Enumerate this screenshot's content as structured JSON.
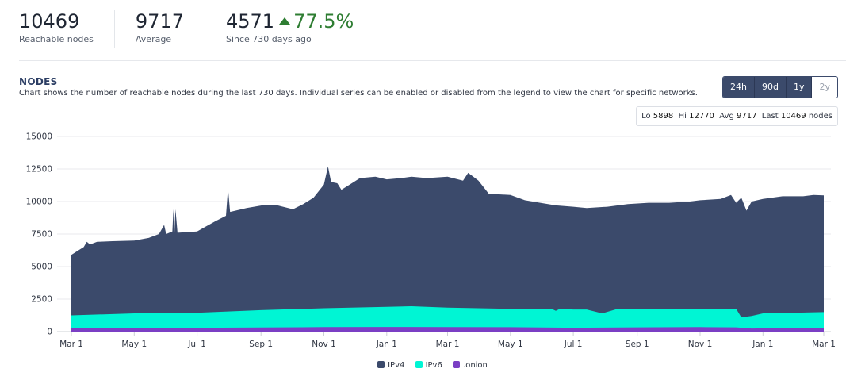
{
  "stats": [
    {
      "value": "10469",
      "label": "Reachable nodes"
    },
    {
      "value": "9717",
      "label": "Average"
    },
    {
      "value": "4571",
      "delta": "77.5%",
      "label": "Since 730 days ago"
    }
  ],
  "section": {
    "title": "NODES",
    "description": "Chart shows the number of reachable nodes during the last 730 days. Individual series can be enabled or disabled from the legend to view the chart for specific networks."
  },
  "range_buttons": [
    {
      "label": "24h",
      "active": false
    },
    {
      "label": "90d",
      "active": false
    },
    {
      "label": "1y",
      "active": false
    },
    {
      "label": "2y",
      "active": true
    }
  ],
  "summary": {
    "lo_label": "Lo",
    "lo": "5898",
    "hi_label": "Hi",
    "hi": "12770",
    "avg_label": "Avg",
    "avg": "9717",
    "last_label": "Last",
    "last": "10469",
    "last_unit": "nodes"
  },
  "colors": {
    "ipv4": "#3b4a6b",
    "ipv6": "#00f5d4",
    "onion": "#7b3fc4"
  },
  "chart_data": {
    "type": "area",
    "stacked": true,
    "ylim": [
      0,
      15000
    ],
    "yticks": [
      0,
      2500,
      5000,
      7500,
      10000,
      12500,
      15000
    ],
    "ytick_labels": [
      "0",
      "2500",
      "5000",
      "7500",
      "10000",
      "12500",
      "15000"
    ],
    "x_tick_labels": [
      "Mar 1",
      "May 1",
      "Jul 1",
      "Sep 1",
      "Nov 1",
      "Jan 1",
      "Mar 1",
      "May 1",
      "Jul 1",
      "Sep 1",
      "Nov 1",
      "Jan 1",
      "Mar 1"
    ],
    "x_tick_day": [
      0,
      61,
      122,
      184,
      245,
      306,
      365,
      426,
      487,
      549,
      610,
      671,
      730
    ],
    "grid": true,
    "legend_position": "bottom-center",
    "series": [
      {
        "name": "IPv4",
        "color": "#3b4a6b",
        "points": [
          [
            0,
            5900
          ],
          [
            6,
            6200
          ],
          [
            12,
            6500
          ],
          [
            15,
            6900
          ],
          [
            18,
            6700
          ],
          [
            25,
            6900
          ],
          [
            40,
            6950
          ],
          [
            61,
            7000
          ],
          [
            75,
            7200
          ],
          [
            85,
            7500
          ],
          [
            90,
            8200
          ],
          [
            92,
            7500
          ],
          [
            98,
            7700
          ],
          [
            99,
            9400
          ],
          [
            100,
            7600
          ],
          [
            101,
            9400
          ],
          [
            103,
            7600
          ],
          [
            122,
            7700
          ],
          [
            140,
            8500
          ],
          [
            150,
            8900
          ],
          [
            152,
            11000
          ],
          [
            154,
            9200
          ],
          [
            170,
            9500
          ],
          [
            185,
            9700
          ],
          [
            200,
            9700
          ],
          [
            215,
            9400
          ],
          [
            225,
            9800
          ],
          [
            235,
            10300
          ],
          [
            245,
            11300
          ],
          [
            249,
            12700
          ],
          [
            252,
            11500
          ],
          [
            258,
            11400
          ],
          [
            262,
            10900
          ],
          [
            270,
            11300
          ],
          [
            280,
            11800
          ],
          [
            295,
            11900
          ],
          [
            306,
            11700
          ],
          [
            320,
            11800
          ],
          [
            330,
            11900
          ],
          [
            345,
            11800
          ],
          [
            365,
            11900
          ],
          [
            380,
            11600
          ],
          [
            385,
            12200
          ],
          [
            390,
            11900
          ],
          [
            395,
            11600
          ],
          [
            405,
            10600
          ],
          [
            426,
            10500
          ],
          [
            440,
            10100
          ],
          [
            470,
            9700
          ],
          [
            487,
            9600
          ],
          [
            500,
            9500
          ],
          [
            520,
            9600
          ],
          [
            540,
            9800
          ],
          [
            560,
            9900
          ],
          [
            580,
            9900
          ],
          [
            600,
            10000
          ],
          [
            610,
            10100
          ],
          [
            630,
            10200
          ],
          [
            640,
            10500
          ],
          [
            645,
            9900
          ],
          [
            650,
            10300
          ],
          [
            655,
            9300
          ],
          [
            660,
            10000
          ],
          [
            671,
            10200
          ],
          [
            690,
            10400
          ],
          [
            710,
            10400
          ],
          [
            720,
            10500
          ],
          [
            730,
            10469
          ]
        ]
      },
      {
        "name": "IPv6",
        "color": "#00f5d4",
        "points": [
          [
            0,
            1250
          ],
          [
            61,
            1400
          ],
          [
            122,
            1450
          ],
          [
            184,
            1650
          ],
          [
            245,
            1800
          ],
          [
            306,
            1900
          ],
          [
            330,
            1950
          ],
          [
            365,
            1850
          ],
          [
            426,
            1750
          ],
          [
            466,
            1750
          ],
          [
            470,
            1600
          ],
          [
            474,
            1750
          ],
          [
            487,
            1700
          ],
          [
            500,
            1700
          ],
          [
            515,
            1400
          ],
          [
            530,
            1750
          ],
          [
            549,
            1750
          ],
          [
            610,
            1750
          ],
          [
            645,
            1750
          ],
          [
            650,
            1100
          ],
          [
            660,
            1200
          ],
          [
            671,
            1400
          ],
          [
            700,
            1450
          ],
          [
            730,
            1500
          ]
        ]
      },
      {
        "name": ".onion",
        "color": "#7b3fc4",
        "points": [
          [
            0,
            280
          ],
          [
            61,
            290
          ],
          [
            122,
            300
          ],
          [
            184,
            320
          ],
          [
            245,
            350
          ],
          [
            306,
            360
          ],
          [
            365,
            350
          ],
          [
            426,
            340
          ],
          [
            487,
            300
          ],
          [
            549,
            330
          ],
          [
            610,
            350
          ],
          [
            645,
            330
          ],
          [
            660,
            240
          ],
          [
            671,
            250
          ],
          [
            700,
            270
          ],
          [
            730,
            260
          ]
        ]
      }
    ]
  }
}
